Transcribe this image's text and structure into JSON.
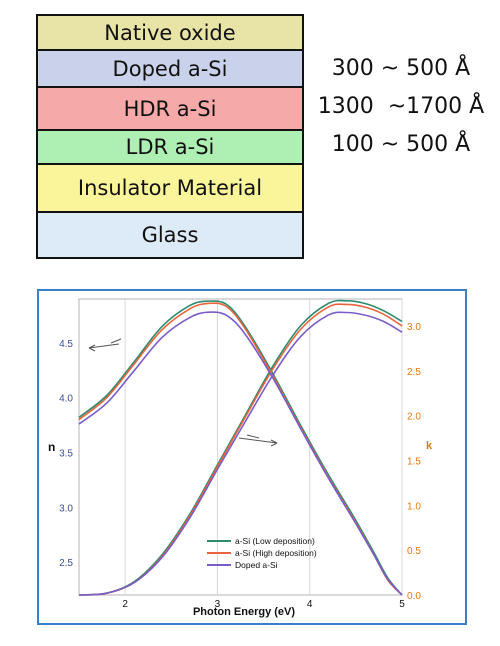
{
  "layers": [
    {
      "label": "Native oxide",
      "color": "#e8e4a6"
    },
    {
      "label": "Doped a-Si",
      "color": "#c9d2ea"
    },
    {
      "label": "HDR a-Si",
      "color": "#f5a9a9"
    },
    {
      "label": "LDR a-Si",
      "color": "#aef0b3"
    },
    {
      "label": "Insulator Material",
      "color": "#faf59a"
    },
    {
      "label": "Glass",
      "color": "#ddeaf8"
    }
  ],
  "thickness": {
    "doped": "300 ~ 500 Å",
    "hdr": "1300  ~1700 Å",
    "ldr": "100 ~ 500 Å"
  },
  "chart_data": {
    "type": "line",
    "xlabel": "Photon Energy (eV)",
    "ylabel_left": "n",
    "ylabel_right": "k",
    "xlim": [
      1.5,
      5.0
    ],
    "ylim_left": [
      2.2,
      4.9
    ],
    "ylim_right": [
      0.0,
      3.3
    ],
    "x_ticks": [
      "2",
      "3",
      "4",
      "5"
    ],
    "y_left_ticks": [
      "2.5",
      "3.0",
      "3.5",
      "4.0",
      "4.5"
    ],
    "y_right_ticks": [
      "0.0",
      "0.5",
      "1.0",
      "1.5",
      "2.0",
      "2.5",
      "3.0"
    ],
    "legend_position": "bottom-center",
    "series": [
      {
        "name": "a-Si (Low deposition)",
        "color": "#2e8b6e",
        "n": [
          [
            1.5,
            3.82
          ],
          [
            1.8,
            4.02
          ],
          [
            2.1,
            4.33
          ],
          [
            2.4,
            4.65
          ],
          [
            2.7,
            4.84
          ],
          [
            2.9,
            4.88
          ],
          [
            3.1,
            4.85
          ],
          [
            3.3,
            4.65
          ],
          [
            3.6,
            4.22
          ],
          [
            3.9,
            3.75
          ],
          [
            4.2,
            3.3
          ],
          [
            4.5,
            2.88
          ],
          [
            4.7,
            2.58
          ],
          [
            4.85,
            2.35
          ],
          [
            5.0,
            2.2
          ]
        ],
        "k": [
          [
            1.5,
            0.0
          ],
          [
            1.8,
            0.02
          ],
          [
            2.1,
            0.15
          ],
          [
            2.4,
            0.45
          ],
          [
            2.7,
            0.9
          ],
          [
            3.0,
            1.45
          ],
          [
            3.3,
            2.0
          ],
          [
            3.6,
            2.55
          ],
          [
            3.9,
            3.0
          ],
          [
            4.2,
            3.25
          ],
          [
            4.4,
            3.28
          ],
          [
            4.6,
            3.25
          ],
          [
            4.8,
            3.17
          ],
          [
            5.0,
            3.05
          ]
        ]
      },
      {
        "name": "a-Si (High deposition)",
        "color": "#e8643c",
        "n": [
          [
            1.5,
            3.8
          ],
          [
            1.8,
            4.0
          ],
          [
            2.1,
            4.31
          ],
          [
            2.4,
            4.62
          ],
          [
            2.7,
            4.81
          ],
          [
            2.9,
            4.86
          ],
          [
            3.1,
            4.83
          ],
          [
            3.3,
            4.63
          ],
          [
            3.6,
            4.2
          ],
          [
            3.9,
            3.73
          ],
          [
            4.2,
            3.28
          ],
          [
            4.5,
            2.86
          ],
          [
            4.7,
            2.56
          ],
          [
            4.85,
            2.33
          ],
          [
            5.0,
            2.2
          ]
        ],
        "k": [
          [
            1.5,
            0.0
          ],
          [
            1.8,
            0.02
          ],
          [
            2.1,
            0.14
          ],
          [
            2.4,
            0.43
          ],
          [
            2.7,
            0.88
          ],
          [
            3.0,
            1.43
          ],
          [
            3.3,
            1.98
          ],
          [
            3.6,
            2.52
          ],
          [
            3.9,
            2.96
          ],
          [
            4.2,
            3.21
          ],
          [
            4.4,
            3.24
          ],
          [
            4.6,
            3.21
          ],
          [
            4.8,
            3.13
          ],
          [
            5.0,
            3.0
          ]
        ]
      },
      {
        "name": "Doped a-Si",
        "color": "#7a5cc8",
        "n": [
          [
            1.5,
            3.76
          ],
          [
            1.8,
            3.95
          ],
          [
            2.1,
            4.25
          ],
          [
            2.4,
            4.55
          ],
          [
            2.7,
            4.73
          ],
          [
            2.9,
            4.78
          ],
          [
            3.1,
            4.75
          ],
          [
            3.3,
            4.58
          ],
          [
            3.6,
            4.18
          ],
          [
            3.9,
            3.72
          ],
          [
            4.2,
            3.27
          ],
          [
            4.5,
            2.85
          ],
          [
            4.7,
            2.56
          ],
          [
            4.85,
            2.34
          ],
          [
            5.0,
            2.2
          ]
        ],
        "k": [
          [
            1.5,
            0.0
          ],
          [
            1.8,
            0.02
          ],
          [
            2.1,
            0.14
          ],
          [
            2.4,
            0.42
          ],
          [
            2.7,
            0.86
          ],
          [
            3.0,
            1.4
          ],
          [
            3.3,
            1.93
          ],
          [
            3.6,
            2.45
          ],
          [
            3.9,
            2.88
          ],
          [
            4.2,
            3.12
          ],
          [
            4.4,
            3.15
          ],
          [
            4.6,
            3.12
          ],
          [
            4.8,
            3.05
          ],
          [
            5.0,
            2.93
          ]
        ]
      }
    ]
  }
}
